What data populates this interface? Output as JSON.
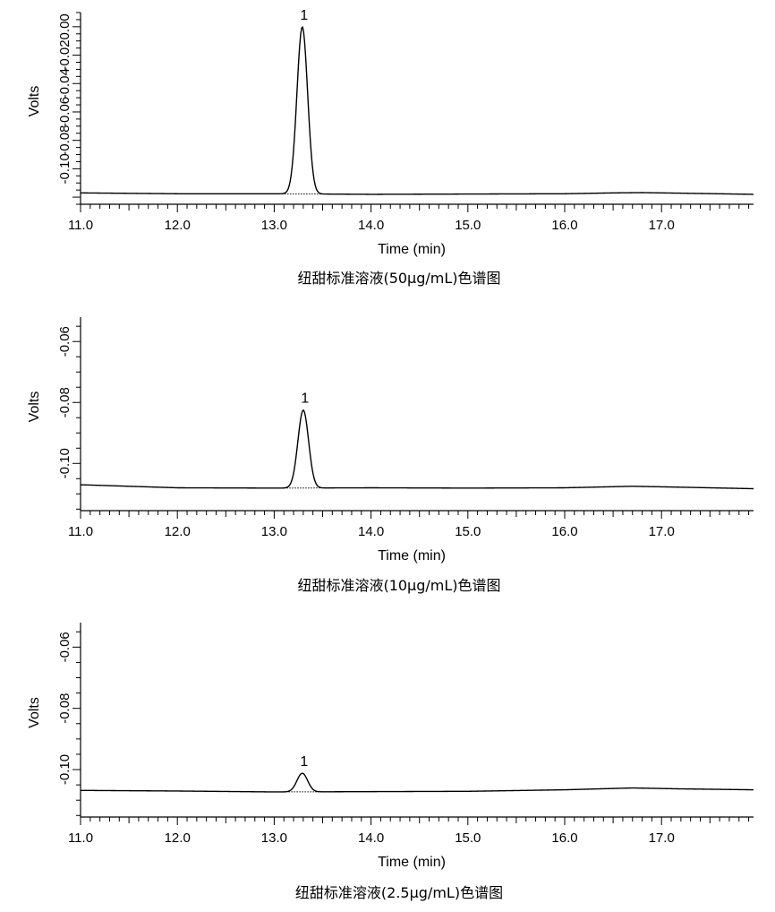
{
  "chart_data": [
    {
      "type": "line",
      "title": "纽甜标准溶液(50μg/mL)色谱图",
      "xlabel": "Time (min)",
      "ylabel": "Volts",
      "xlim": [
        11.0,
        17.95
      ],
      "ylim": [
        -0.125,
        0.01
      ],
      "x_ticks": [
        "11.0",
        "12.0",
        "13.0",
        "14.0",
        "15.0",
        "16.0",
        "17.0"
      ],
      "y_ticks": [
        "-0.10",
        "-0.08",
        "-0.06",
        "-0.04",
        "-0.02",
        "0.00"
      ],
      "y_tick_values": [
        -0.1,
        -0.08,
        -0.06,
        -0.04,
        -0.02,
        0.0
      ],
      "baseline": [
        [
          11.0,
          -0.117
        ],
        [
          12.0,
          -0.1176
        ],
        [
          13.0,
          -0.1176
        ],
        [
          13.5,
          -0.1178
        ],
        [
          14.0,
          -0.118
        ],
        [
          15.0,
          -0.1178
        ],
        [
          16.0,
          -0.1176
        ],
        [
          16.5,
          -0.117
        ],
        [
          16.8,
          -0.1168
        ],
        [
          17.2,
          -0.1172
        ],
        [
          17.95,
          -0.118
        ]
      ],
      "peaks": [
        {
          "label": "1",
          "time": 13.29,
          "apex": 0.0,
          "sigma": 0.055,
          "start": 13.08,
          "end": 13.52
        }
      ]
    },
    {
      "type": "line",
      "title": "纽甜标准溶液(10μg/mL)色谱图",
      "xlabel": "Time (min)",
      "ylabel": "Volts",
      "xlim": [
        11.0,
        17.95
      ],
      "ylim": [
        -0.1155,
        -0.052
      ],
      "x_ticks": [
        "11.0",
        "12.0",
        "13.0",
        "14.0",
        "15.0",
        "16.0",
        "17.0"
      ],
      "y_ticks": [
        "-0.10",
        "-0.08",
        "-0.06"
      ],
      "y_tick_values": [
        -0.1,
        -0.08,
        -0.06
      ],
      "baseline": [
        [
          11.0,
          -0.107
        ],
        [
          12.0,
          -0.108
        ],
        [
          13.0,
          -0.1081
        ],
        [
          14.0,
          -0.108
        ],
        [
          15.0,
          -0.1081
        ],
        [
          16.0,
          -0.108
        ],
        [
          16.7,
          -0.1075
        ],
        [
          17.2,
          -0.1078
        ],
        [
          17.95,
          -0.1083
        ]
      ],
      "peaks": [
        {
          "label": "1",
          "time": 13.3,
          "apex": -0.0825,
          "sigma": 0.055,
          "start": 13.1,
          "end": 13.52
        }
      ]
    },
    {
      "type": "line",
      "title": "纽甜标准溶液(2.5μg/mL)色谱图",
      "xlabel": "Time (min)",
      "ylabel": "Volts",
      "xlim": [
        11.0,
        17.95
      ],
      "ylim": [
        -0.1155,
        -0.052
      ],
      "x_ticks": [
        "11.0",
        "12.0",
        "13.0",
        "14.0",
        "15.0",
        "16.0",
        "17.0"
      ],
      "y_ticks": [
        "-0.10",
        "-0.08",
        "-0.06"
      ],
      "y_tick_values": [
        -0.1,
        -0.08,
        -0.06
      ],
      "baseline": [
        [
          11.0,
          -0.1068
        ],
        [
          12.0,
          -0.107
        ],
        [
          13.0,
          -0.1073
        ],
        [
          14.0,
          -0.1072
        ],
        [
          15.0,
          -0.1071
        ],
        [
          16.0,
          -0.1066
        ],
        [
          16.7,
          -0.106
        ],
        [
          17.2,
          -0.1063
        ],
        [
          17.95,
          -0.1066
        ]
      ],
      "peaks": [
        {
          "label": "1",
          "time": 13.29,
          "apex": -0.1012,
          "sigma": 0.055,
          "start": 13.12,
          "end": 13.48
        }
      ]
    }
  ]
}
